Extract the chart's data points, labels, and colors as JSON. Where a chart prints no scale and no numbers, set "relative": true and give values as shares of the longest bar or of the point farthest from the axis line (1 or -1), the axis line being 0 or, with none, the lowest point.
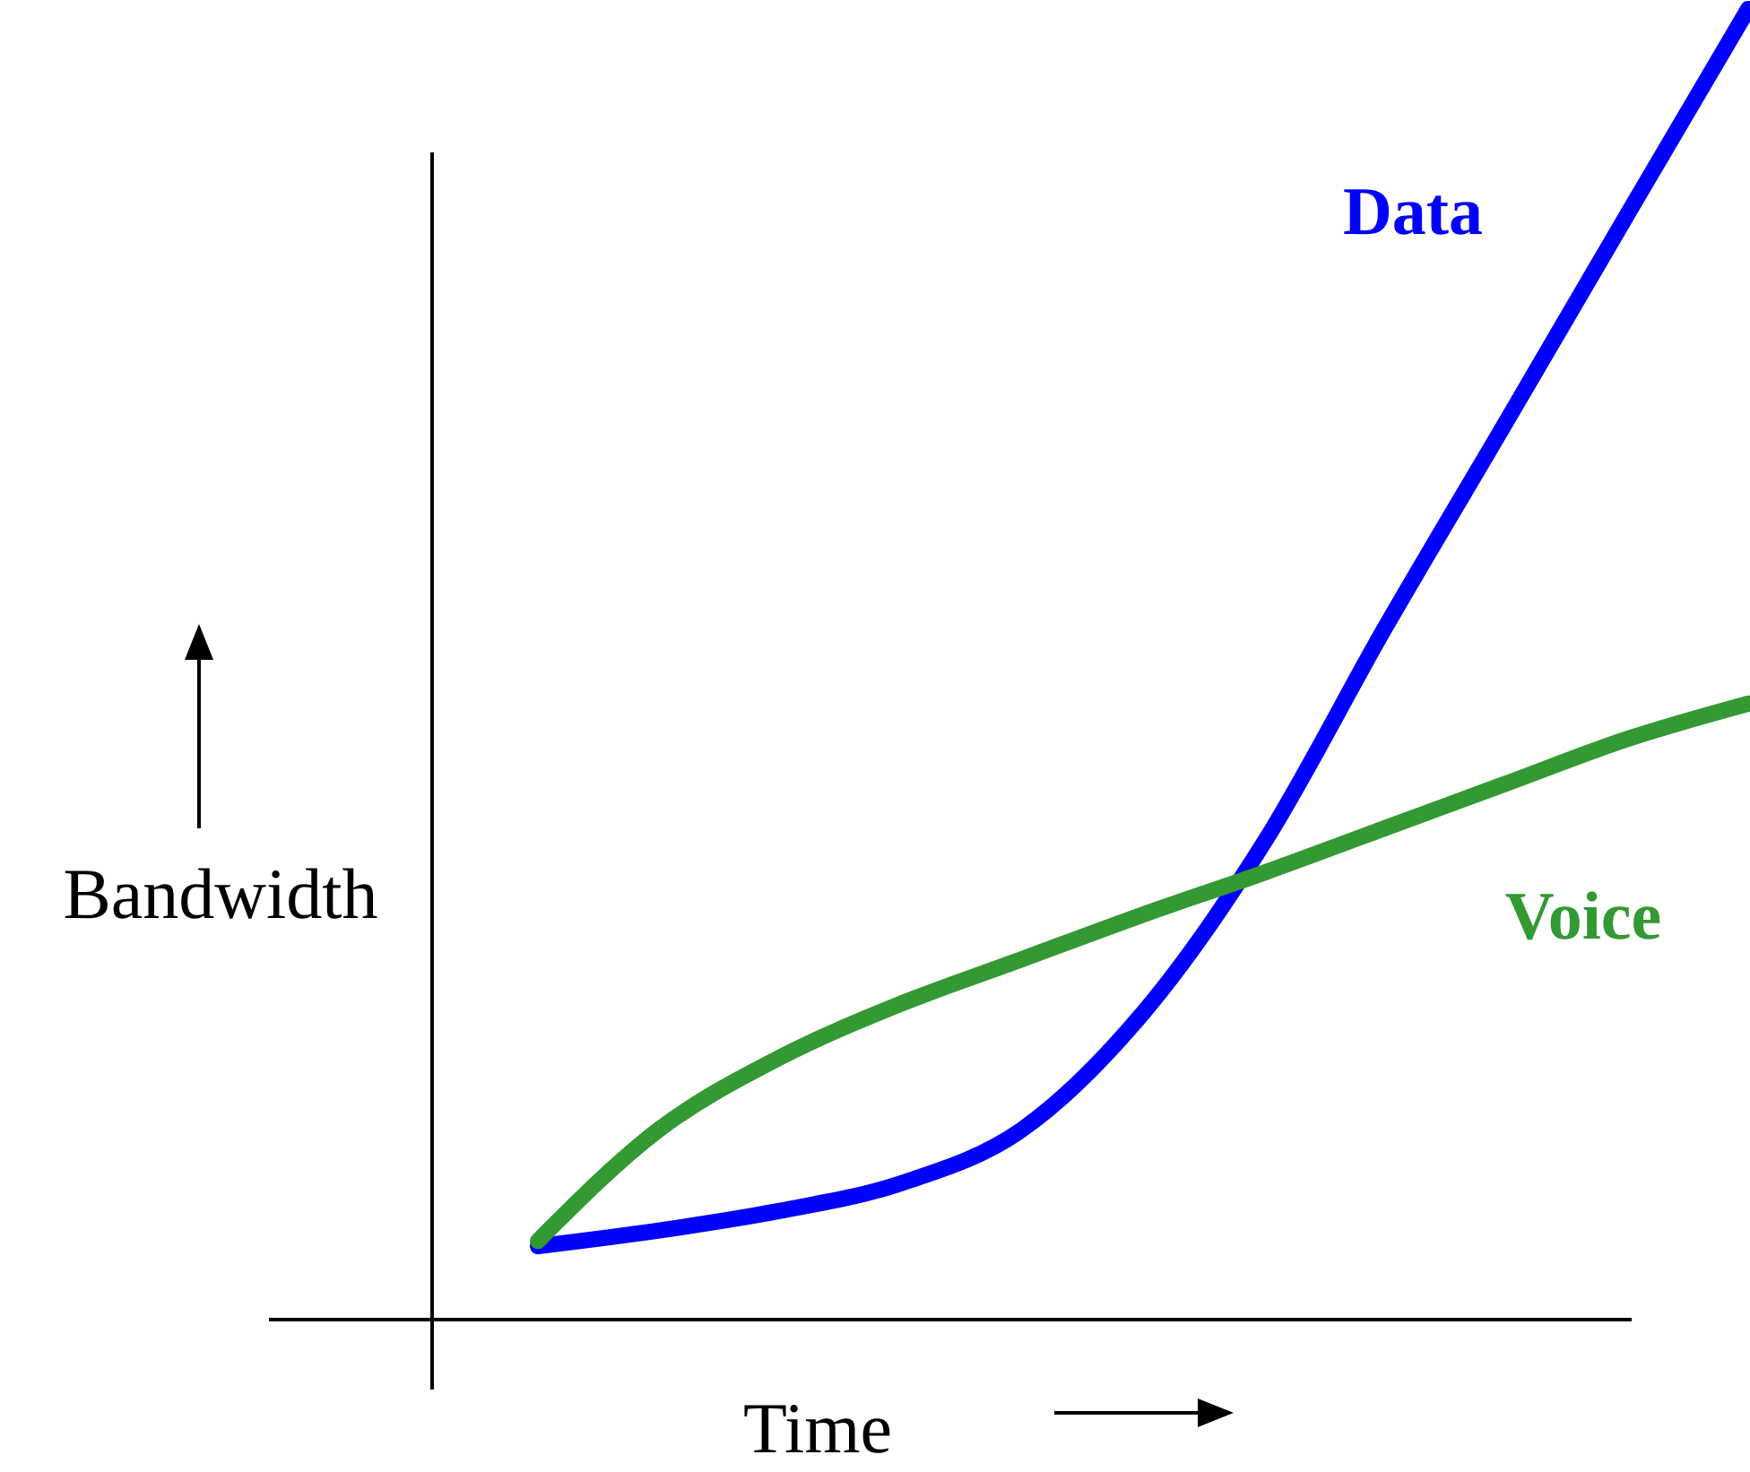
{
  "chart_data": {
    "type": "line",
    "relative": true,
    "xlabel": "Time",
    "ylabel": "Bandwidth",
    "categories": [
      null,
      null,
      null,
      null,
      null,
      null,
      null,
      null,
      null,
      null,
      null
    ],
    "series": [
      {
        "name": "Data",
        "color": "#0000ff",
        "values": [
          0.056,
          0.068,
          0.083,
          0.104,
          0.145,
          0.234,
          0.364,
          0.528,
          0.685,
          0.843,
          1
        ]
      },
      {
        "name": "Voice",
        "color": "#339933",
        "values": [
          0.06,
          0.145,
          0.2,
          0.241,
          0.275,
          0.309,
          0.341,
          0.375,
          0.409,
          0.443,
          0.47
        ]
      }
    ]
  }
}
